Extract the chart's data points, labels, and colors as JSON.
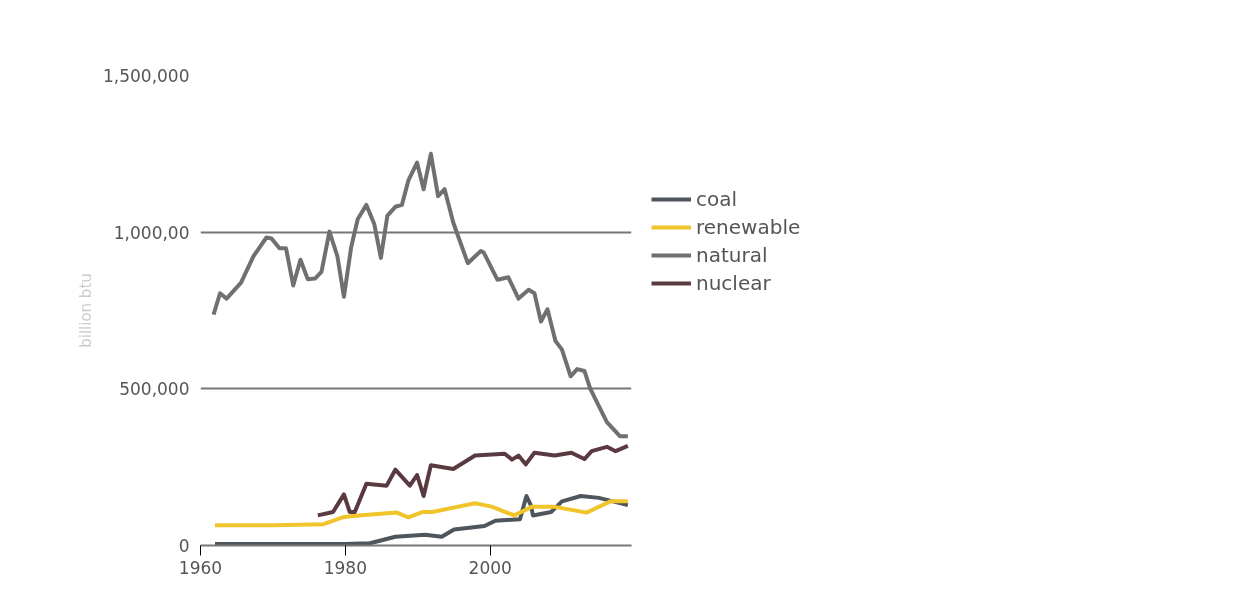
{
  "chart_data": {
    "type": "line",
    "ylabel": "billion btu",
    "xlim": [
      1960,
      2019.5
    ],
    "xticks": [
      {
        "value": 1960,
        "label": "1960"
      },
      {
        "value": 1980,
        "label": "1980"
      },
      {
        "value": 2000,
        "label": "2000"
      }
    ],
    "ylim": [
      0,
      1500000
    ],
    "yticks": [
      {
        "value": 0,
        "label": "0"
      },
      {
        "value": 500000,
        "label": "500,000"
      },
      {
        "value": 1000000,
        "label": "1,000,00"
      },
      {
        "value": 1500000,
        "label": "1,500,000"
      }
    ],
    "grid": "y",
    "legend": "right",
    "line_style": "solid",
    "marker": "none",
    "series": [
      {
        "name": "coal",
        "color": "#4e555c",
        "x": [
          1962,
          1970,
          1980,
          1983.4,
          1986.9,
          1991,
          1993.3,
          1995,
          1999.2,
          2000.7,
          2004.1,
          2005,
          2005.6,
          2005.9,
          2008.4,
          2009.9,
          2012.5,
          2015,
          2019
        ],
        "values": [
          5000,
          5000,
          5000,
          7000,
          28000,
          34000,
          28000,
          51000,
          62000,
          79000,
          84000,
          158000,
          129000,
          96000,
          107000,
          141000,
          158000,
          152000,
          129000
        ]
      },
      {
        "name": "renewable",
        "color": "#f2c42c",
        "x": [
          1962,
          1970,
          1977,
          1979.8,
          1981.8,
          1987.1,
          1988.7,
          1990.7,
          1992,
          1997.9,
          2000.2,
          2003.3,
          2005.8,
          2008.7,
          2013.3,
          2016.6,
          2019
        ],
        "values": [
          65000,
          65000,
          68000,
          91000,
          96000,
          105000,
          90000,
          107000,
          107000,
          135000,
          124000,
          96000,
          124000,
          124000,
          105000,
          141000,
          141000
        ]
      },
      {
        "name": "natural",
        "color": "#707070",
        "x": [
          1961.8,
          1962.7,
          1963.6,
          1965.6,
          1967.3,
          1969.1,
          1969.8,
          1970.9,
          1971.8,
          1972.8,
          1973.8,
          1974.8,
          1975.8,
          1976.7,
          1977.8,
          1978.9,
          1979.8,
          1980.8,
          1981.7,
          1982.9,
          1984,
          1984.9,
          1985.8,
          1986.9,
          1987.8,
          1988.7,
          1989.9,
          1990.8,
          1991.8,
          1992.8,
          1993.7,
          1994.9,
          1996.9,
          1998.7,
          1999.1,
          2001,
          2002.5,
          2003.9,
          2005.3,
          2006.1,
          2007,
          2007.9,
          2009,
          2009.9,
          2011.1,
          2012,
          2013,
          2013.8,
          2015,
          2016.1,
          2017.9,
          2019
        ],
        "values": [
          737000,
          805000,
          788000,
          839000,
          923000,
          983000,
          980000,
          949000,
          949000,
          830000,
          912000,
          850000,
          852000,
          873000,
          1002000,
          923000,
          794000,
          952000,
          1041000,
          1087000,
          1025000,
          918000,
          1053000,
          1081000,
          1087000,
          1165000,
          1222000,
          1137000,
          1250000,
          1115000,
          1137000,
          1030000,
          901000,
          940000,
          935000,
          848000,
          856000,
          788000,
          816000,
          805000,
          715000,
          754000,
          653000,
          625000,
          540000,
          563000,
          557000,
          501000,
          445000,
          394000,
          349000,
          349000
        ]
      },
      {
        "name": "nuclear",
        "color": "#5a3a40",
        "x": [
          1976.2,
          1978.3,
          1979.8,
          1980.6,
          1981.3,
          1982.9,
          1985.7,
          1986.9,
          1988.9,
          1989.9,
          1990.8,
          1991.8,
          1994.9,
          1997.9,
          2002,
          2003,
          2003.9,
          2004.9,
          2006.1,
          2008.9,
          2011.2,
          2013,
          2014,
          2016.1,
          2017.3,
          2019
        ],
        "values": [
          96000,
          107000,
          163000,
          107000,
          107000,
          197000,
          191000,
          242000,
          191000,
          225000,
          158000,
          256000,
          244000,
          287000,
          293000,
          274000,
          287000,
          259000,
          296000,
          287000,
          296000,
          276000,
          301000,
          315000,
          301000,
          318000
        ]
      }
    ]
  }
}
